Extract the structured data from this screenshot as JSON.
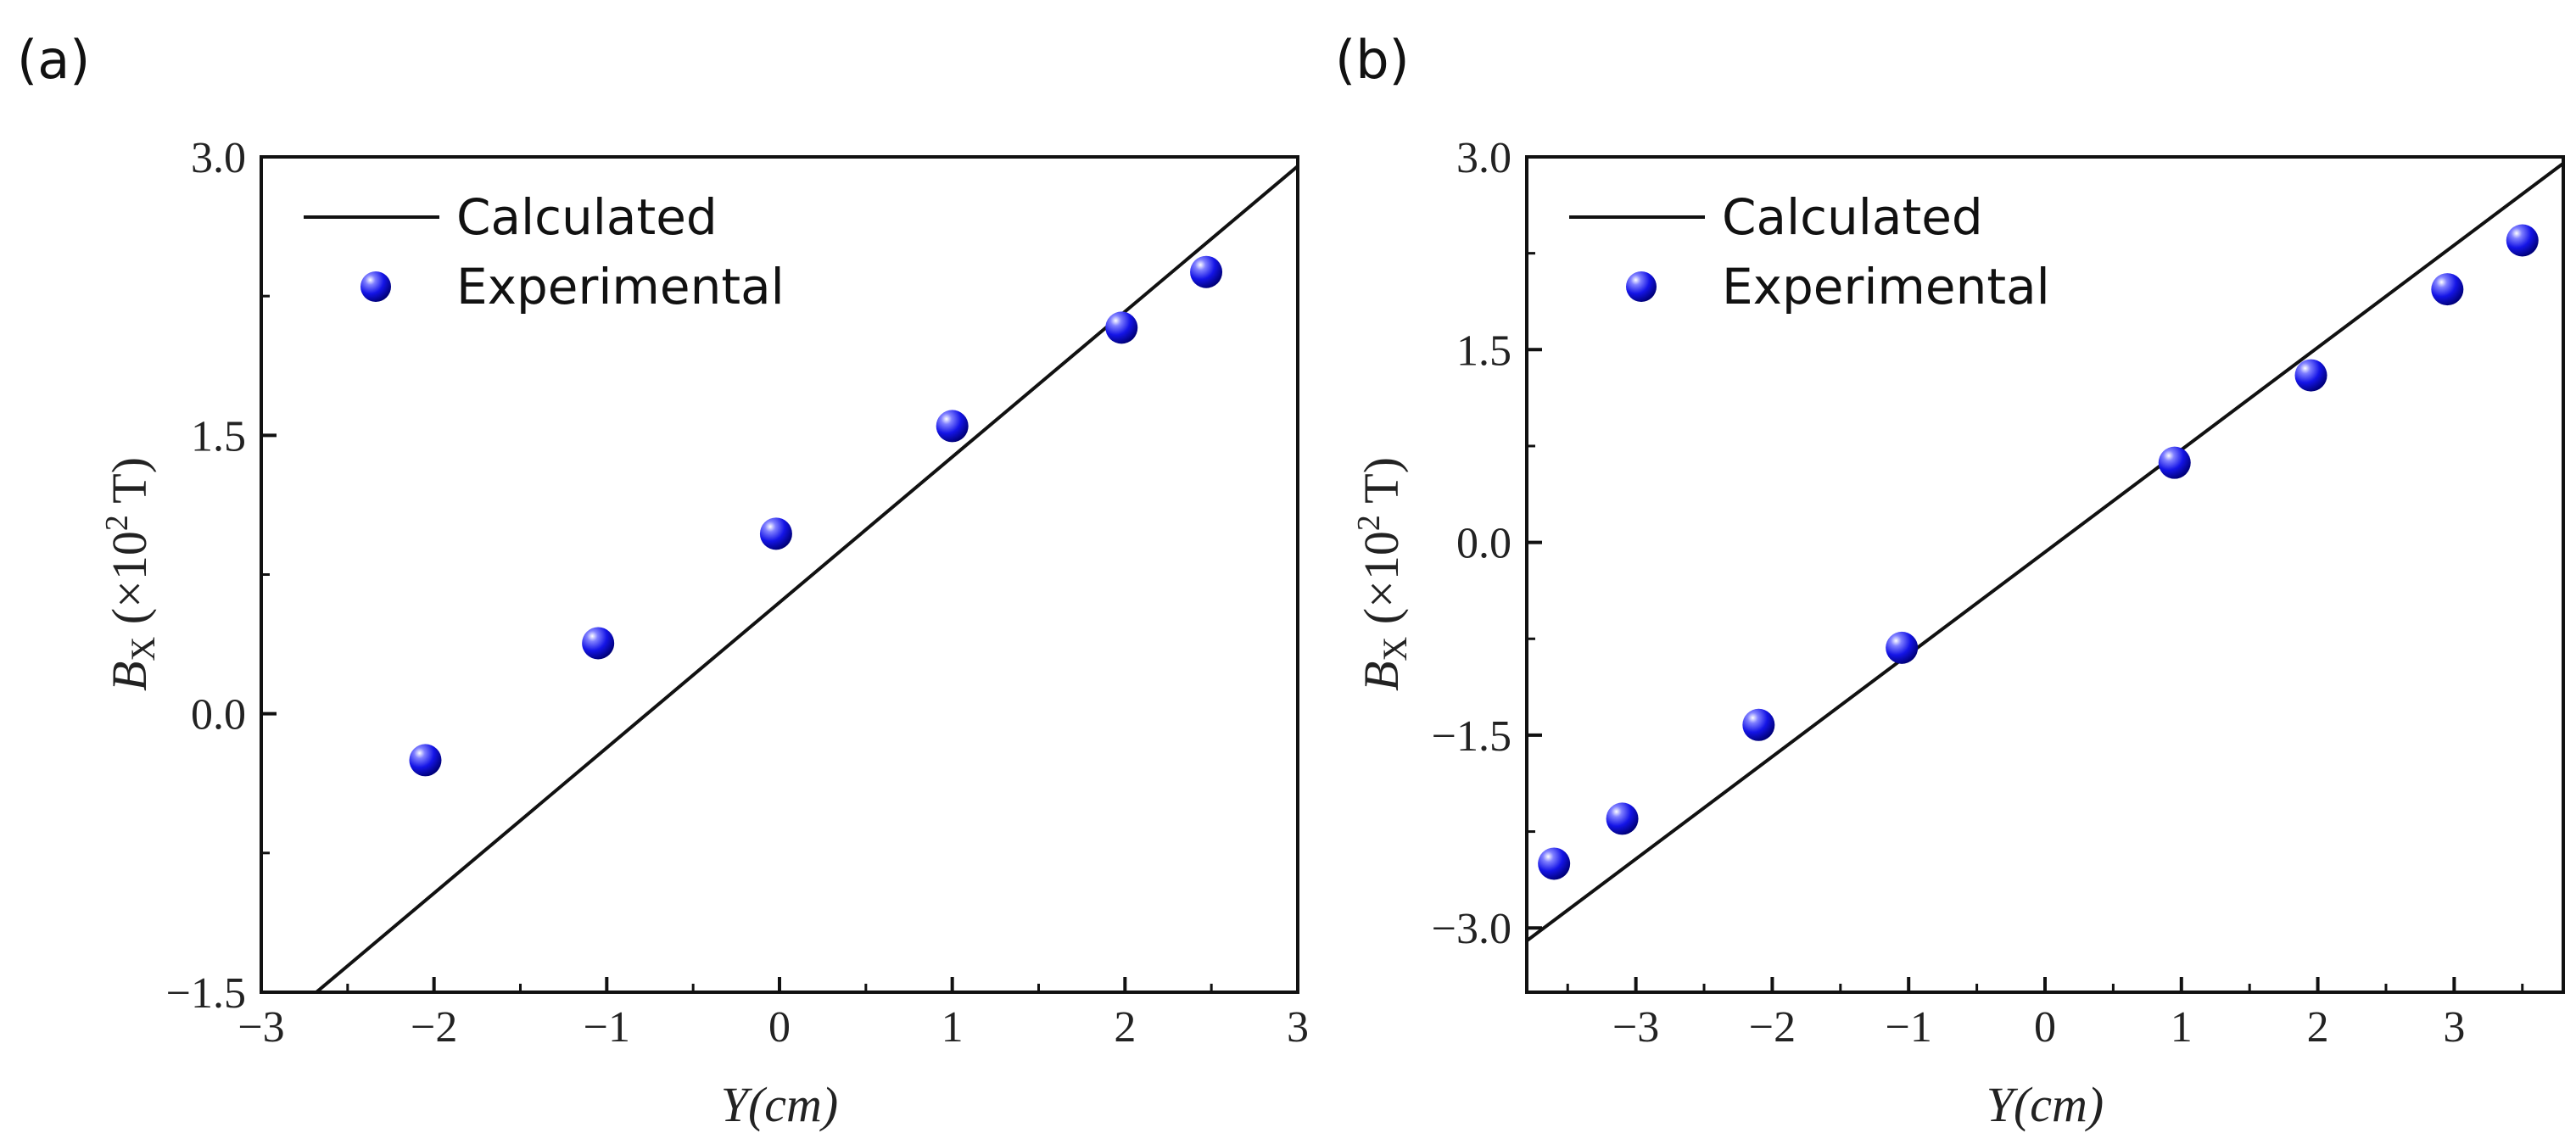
{
  "chart_data": [
    {
      "panel": "(a)",
      "type": "line",
      "legend": [
        "Calculated",
        "Experimental"
      ],
      "xlabel": "Y(cm)",
      "ylabel_symbol": "B",
      "ylabel_sub": "X",
      "ylabel_rest_a": " (×10",
      "ylabel_sup": "2",
      "ylabel_rest_b": " T)",
      "xlim": [
        -3,
        3
      ],
      "ylim": [
        -1.5,
        3.0
      ],
      "xticks": [
        -3,
        -2,
        -1,
        0,
        1,
        2,
        3
      ],
      "xtick_labels": [
        "−3",
        "−2",
        "−1",
        "0",
        "1",
        "2",
        "3"
      ],
      "yticks": [
        -1.5,
        0.0,
        1.5,
        3.0
      ],
      "ytick_labels": [
        "−1.5",
        "0.0",
        "1.5",
        "3.0"
      ],
      "series": [
        {
          "name": "Calculated",
          "kind": "line",
          "x": [
            -3.0,
            3.0
          ],
          "y": [
            -1.75,
            2.95
          ]
        },
        {
          "name": "Experimental",
          "kind": "scatter",
          "x": [
            -2.05,
            -1.05,
            -0.02,
            1.0,
            1.98,
            2.47
          ],
          "y": [
            -0.25,
            0.38,
            0.97,
            1.55,
            2.08,
            2.38
          ]
        }
      ]
    },
    {
      "panel": "(b)",
      "type": "line",
      "legend": [
        "Calculated",
        "Experimental"
      ],
      "xlabel": "Y(cm)",
      "ylabel_symbol": "B",
      "ylabel_sub": "X",
      "ylabel_rest_a": " (×10",
      "ylabel_sup": "2",
      "ylabel_rest_b": " T)",
      "xlim": [
        -3.8,
        3.8
      ],
      "ylim": [
        -3.5,
        3.0
      ],
      "xticks": [
        -3,
        -2,
        -1,
        0,
        1,
        2,
        3
      ],
      "xtick_labels": [
        "−3",
        "−2",
        "−1",
        "0",
        "1",
        "2",
        "3"
      ],
      "yticks": [
        -3.0,
        -1.5,
        0.0,
        1.5,
        3.0
      ],
      "ytick_labels": [
        "−3.0",
        "−1.5",
        "0.0",
        "1.5",
        "3.0"
      ],
      "series": [
        {
          "name": "Calculated",
          "kind": "line",
          "x": [
            -3.8,
            3.8
          ],
          "y": [
            -3.1,
            2.95
          ]
        },
        {
          "name": "Experimental",
          "kind": "scatter",
          "x": [
            -3.6,
            -3.1,
            -2.1,
            -1.05,
            0.95,
            1.95,
            2.95,
            3.5
          ],
          "y": [
            -2.5,
            -2.15,
            -1.42,
            -0.82,
            0.62,
            1.3,
            1.97,
            2.35
          ]
        }
      ]
    }
  ]
}
